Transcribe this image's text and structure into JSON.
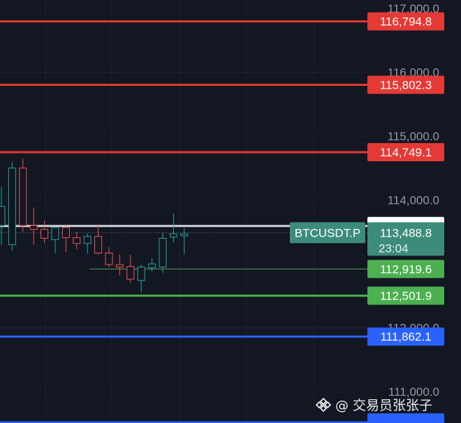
{
  "chart_data": {
    "type": "candlestick",
    "y_axis": {
      "ticks": [
        {
          "value": 117000,
          "label": "117,000.0"
        },
        {
          "value": 116000,
          "label": "116,000.0"
        },
        {
          "value": 115000,
          "label": "115,000.0"
        },
        {
          "value": 114000,
          "label": "114,000.0"
        },
        {
          "value": 112000,
          "label": "112,000.0"
        },
        {
          "value": 111000,
          "label": "111,000.0"
        }
      ],
      "range": [
        110510,
        117130
      ]
    },
    "candles": [
      {
        "open": 113600,
        "high": 114200,
        "low": 113300,
        "close": 113900
      },
      {
        "open": 113300,
        "high": 114600,
        "low": 113200,
        "close": 114500
      },
      {
        "open": 114500,
        "high": 114650,
        "low": 113500,
        "close": 113600
      },
      {
        "open": 113600,
        "high": 113880,
        "low": 113300,
        "close": 113540
      },
      {
        "open": 113540,
        "high": 113670,
        "low": 113330,
        "close": 113400
      },
      {
        "open": 113380,
        "high": 113580,
        "low": 113170,
        "close": 113570
      },
      {
        "open": 113570,
        "high": 113600,
        "low": 113180,
        "close": 113410
      },
      {
        "open": 113410,
        "high": 113500,
        "low": 113230,
        "close": 113320
      },
      {
        "open": 113320,
        "high": 113480,
        "low": 113160,
        "close": 113430
      },
      {
        "open": 113430,
        "high": 113620,
        "low": 113150,
        "close": 113170
      },
      {
        "open": 113170,
        "high": 113260,
        "low": 112950,
        "close": 112990
      },
      {
        "open": 112990,
        "high": 113150,
        "low": 112820,
        "close": 112950
      },
      {
        "open": 112960,
        "high": 113140,
        "low": 112700,
        "close": 112760
      },
      {
        "open": 112740,
        "high": 112990,
        "low": 112560,
        "close": 112950
      },
      {
        "open": 112940,
        "high": 113090,
        "low": 112880,
        "close": 113000
      },
      {
        "open": 112950,
        "high": 113490,
        "low": 112860,
        "close": 113400
      },
      {
        "open": 113420,
        "high": 113790,
        "low": 113340,
        "close": 113470
      },
      {
        "open": 113440,
        "high": 113560,
        "low": 113150,
        "close": 113470
      }
    ],
    "horizontal_lines": [
      {
        "value": 116794.8,
        "label": "116,794.8",
        "color": "#e53935"
      },
      {
        "value": 115802.3,
        "label": "115,802.3",
        "color": "#e53935"
      },
      {
        "value": 114749.1,
        "label": "114,749.1",
        "color": "#e53935"
      },
      {
        "value": 113592.7,
        "label": "113,592.7",
        "color": "#d1d4dc"
      },
      {
        "value": 112501.9,
        "label": "112,501.9",
        "color": "#4caf50"
      },
      {
        "value": 111862.1,
        "label": "111,862.1",
        "color": "#2962ff"
      },
      {
        "value": 110520,
        "label": "",
        "color": "#2962ff"
      }
    ],
    "partial_line": {
      "value": 112919.6,
      "label": "112,919.6",
      "color": "#5aa05f"
    },
    "current_price": {
      "value": 113488.8,
      "label": "113,488.8",
      "countdown": "23:04",
      "symbol": "BTCUSDT.P",
      "color": "#3d8c7a"
    }
  },
  "colors": {
    "background": "#131722",
    "grid": "#1e2230",
    "up": "#26a69a",
    "down": "#ef5350"
  },
  "watermark": {
    "text": "@ 交易员张张子",
    "icon": "binance-square-logo"
  }
}
